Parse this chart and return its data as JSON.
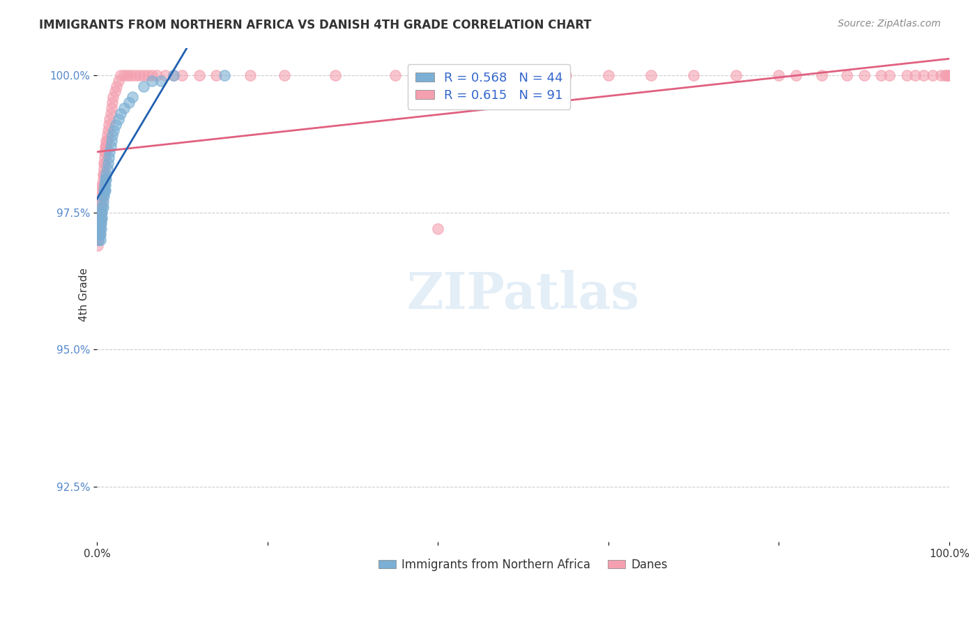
{
  "title": "IMMIGRANTS FROM NORTHERN AFRICA VS DANISH 4TH GRADE CORRELATION CHART",
  "source": "Source: ZipAtlas.com",
  "xlabel": "",
  "ylabel": "4th Grade",
  "xlim": [
    0.0,
    1.0
  ],
  "ylim": [
    0.915,
    1.005
  ],
  "xticks": [
    0.0,
    0.2,
    0.4,
    0.6,
    0.8,
    1.0
  ],
  "xtick_labels": [
    "0.0%",
    "",
    "",
    "",
    "",
    "100.0%"
  ],
  "yticks": [
    0.925,
    0.95,
    0.975,
    1.0
  ],
  "ytick_labels": [
    "92.5%",
    "95.0%",
    "97.5%",
    "100.0%"
  ],
  "blue_color": "#7bafd4",
  "pink_color": "#f4a0b0",
  "blue_line_color": "#2060b0",
  "pink_line_color": "#e06080",
  "legend_R_blue": "R = 0.568",
  "legend_N_blue": "N = 44",
  "legend_R_pink": "R = 0.615",
  "legend_N_pink": "N =  91",
  "watermark": "ZIPatlas",
  "legend_label_blue": "Immigrants from Northern Africa",
  "legend_label_pink": "Danes",
  "blue_x": [
    0.002,
    0.003,
    0.003,
    0.004,
    0.004,
    0.004,
    0.005,
    0.005,
    0.005,
    0.005,
    0.006,
    0.006,
    0.006,
    0.007,
    0.007,
    0.007,
    0.008,
    0.008,
    0.009,
    0.009,
    0.01,
    0.01,
    0.01,
    0.011,
    0.011,
    0.012,
    0.013,
    0.014,
    0.015,
    0.016,
    0.017,
    0.018,
    0.02,
    0.022,
    0.025,
    0.028,
    0.032,
    0.038,
    0.042,
    0.055,
    0.065,
    0.075,
    0.09,
    0.15
  ],
  "blue_y": [
    0.97,
    0.972,
    0.971,
    0.973,
    0.971,
    0.97,
    0.975,
    0.974,
    0.973,
    0.972,
    0.976,
    0.975,
    0.974,
    0.978,
    0.977,
    0.976,
    0.979,
    0.978,
    0.98,
    0.979,
    0.981,
    0.98,
    0.979,
    0.982,
    0.981,
    0.983,
    0.984,
    0.985,
    0.986,
    0.987,
    0.988,
    0.989,
    0.99,
    0.991,
    0.992,
    0.993,
    0.994,
    0.995,
    0.996,
    0.998,
    0.999,
    0.999,
    1.0,
    1.0
  ],
  "pink_x": [
    0.001,
    0.001,
    0.002,
    0.002,
    0.002,
    0.003,
    0.003,
    0.003,
    0.003,
    0.004,
    0.004,
    0.004,
    0.004,
    0.005,
    0.005,
    0.005,
    0.005,
    0.005,
    0.006,
    0.006,
    0.006,
    0.006,
    0.007,
    0.007,
    0.007,
    0.007,
    0.008,
    0.008,
    0.008,
    0.009,
    0.009,
    0.009,
    0.01,
    0.01,
    0.011,
    0.011,
    0.012,
    0.012,
    0.013,
    0.014,
    0.015,
    0.016,
    0.017,
    0.018,
    0.019,
    0.021,
    0.023,
    0.025,
    0.028,
    0.032,
    0.036,
    0.04,
    0.045,
    0.05,
    0.055,
    0.06,
    0.065,
    0.07,
    0.08,
    0.09,
    0.1,
    0.12,
    0.14,
    0.18,
    0.22,
    0.28,
    0.35,
    0.45,
    0.55,
    0.65,
    0.75,
    0.82,
    0.88,
    0.92,
    0.95,
    0.97,
    0.99,
    0.995,
    0.997,
    0.999,
    0.5,
    0.6,
    0.7,
    0.8,
    0.85,
    0.9,
    0.93,
    0.96,
    0.98,
    1.0,
    0.4
  ],
  "pink_y": [
    0.97,
    0.969,
    0.972,
    0.971,
    0.97,
    0.974,
    0.973,
    0.972,
    0.971,
    0.976,
    0.975,
    0.974,
    0.973,
    0.978,
    0.977,
    0.976,
    0.975,
    0.974,
    0.98,
    0.979,
    0.978,
    0.977,
    0.982,
    0.981,
    0.98,
    0.979,
    0.984,
    0.983,
    0.982,
    0.986,
    0.985,
    0.984,
    0.987,
    0.986,
    0.988,
    0.987,
    0.989,
    0.988,
    0.99,
    0.991,
    0.992,
    0.993,
    0.994,
    0.995,
    0.996,
    0.997,
    0.998,
    0.999,
    1.0,
    1.0,
    1.0,
    1.0,
    1.0,
    1.0,
    1.0,
    1.0,
    1.0,
    1.0,
    1.0,
    1.0,
    1.0,
    1.0,
    1.0,
    1.0,
    1.0,
    1.0,
    1.0,
    1.0,
    1.0,
    1.0,
    1.0,
    1.0,
    1.0,
    1.0,
    1.0,
    1.0,
    1.0,
    1.0,
    1.0,
    1.0,
    1.0,
    1.0,
    1.0,
    1.0,
    1.0,
    1.0,
    1.0,
    1.0,
    1.0,
    1.0,
    0.972
  ]
}
